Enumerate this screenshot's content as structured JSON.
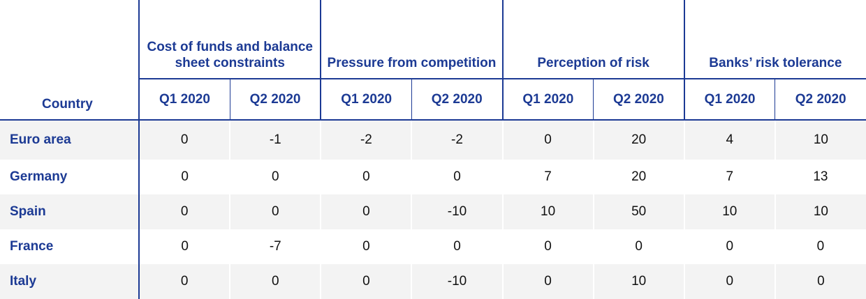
{
  "header": {
    "country_label": "Country",
    "groups": [
      "Cost of funds and balance sheet constraints",
      "Pressure from competition",
      "Perception of risk",
      "Banks’ risk tolerance"
    ],
    "quarters": [
      "Q1 2020",
      "Q2 2020",
      "Q1 2020",
      "Q2 2020",
      "Q1 2020",
      "Q2 2020",
      "Q1 2020",
      "Q2 2020"
    ]
  },
  "rows": [
    {
      "country": "Euro area",
      "values": [
        "0",
        "-1",
        "-2",
        "-2",
        "0",
        "20",
        "4",
        "10"
      ]
    },
    {
      "country": "Germany",
      "values": [
        "0",
        "0",
        "0",
        "0",
        "7",
        "20",
        "7",
        "13"
      ]
    },
    {
      "country": "Spain",
      "values": [
        "0",
        "0",
        "0",
        "-10",
        "10",
        "50",
        "10",
        "10"
      ]
    },
    {
      "country": "France",
      "values": [
        "0",
        "-7",
        "0",
        "0",
        "0",
        "0",
        "0",
        "0"
      ]
    },
    {
      "country": "Italy",
      "values": [
        "0",
        "0",
        "0",
        "-10",
        "0",
        "10",
        "0",
        "0"
      ]
    }
  ],
  "colors": {
    "accent": "#1c3a94",
    "row_shade": "#f3f3f3"
  }
}
